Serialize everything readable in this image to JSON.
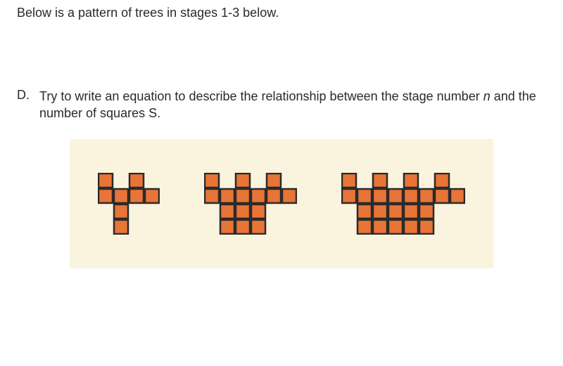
{
  "intro_text": "Below is a pattern of trees in stages 1-3 below.",
  "question": {
    "letter": "D.",
    "body_1": "Try to write an equation to describe the relationship between the stage number ",
    "body_var1": "n",
    "body_2": " and the number of squares S."
  },
  "figure": {
    "panel_bg": "#faf3de",
    "square": {
      "fill": "#e87437",
      "stroke": "#2a2a2a",
      "size": 22
    },
    "trees": [
      {
        "stage": 1,
        "cols": 4,
        "rows": 4,
        "cells": [
          [
            0,
            0
          ],
          [
            2,
            0
          ],
          [
            0,
            1
          ],
          [
            1,
            1
          ],
          [
            2,
            1
          ],
          [
            3,
            1
          ],
          [
            1,
            2
          ],
          [
            1,
            3
          ]
        ]
      },
      {
        "stage": 2,
        "cols": 6,
        "rows": 4,
        "cells": [
          [
            0,
            0
          ],
          [
            2,
            0
          ],
          [
            4,
            0
          ],
          [
            0,
            1
          ],
          [
            1,
            1
          ],
          [
            2,
            1
          ],
          [
            3,
            1
          ],
          [
            4,
            1
          ],
          [
            5,
            1
          ],
          [
            1,
            2
          ],
          [
            2,
            2
          ],
          [
            3,
            2
          ],
          [
            1,
            3
          ],
          [
            2,
            3
          ],
          [
            3,
            3
          ]
        ]
      },
      {
        "stage": 3,
        "cols": 8,
        "rows": 4,
        "cells": [
          [
            0,
            0
          ],
          [
            2,
            0
          ],
          [
            4,
            0
          ],
          [
            6,
            0
          ],
          [
            0,
            1
          ],
          [
            1,
            1
          ],
          [
            2,
            1
          ],
          [
            3,
            1
          ],
          [
            4,
            1
          ],
          [
            5,
            1
          ],
          [
            6,
            1
          ],
          [
            7,
            1
          ],
          [
            1,
            2
          ],
          [
            2,
            2
          ],
          [
            3,
            2
          ],
          [
            4,
            2
          ],
          [
            5,
            2
          ],
          [
            1,
            3
          ],
          [
            2,
            3
          ],
          [
            3,
            3
          ],
          [
            4,
            3
          ],
          [
            5,
            3
          ]
        ]
      }
    ]
  }
}
